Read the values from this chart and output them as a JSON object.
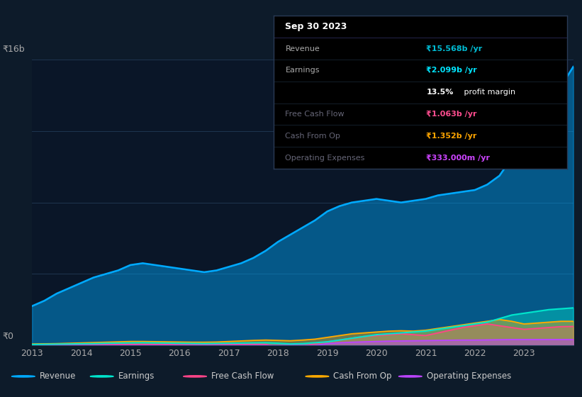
{
  "bg_color": "#0d1b2a",
  "plot_bg_color": "#0a1628",
  "ylabel_top": "₹16b",
  "ylabel_zero": "₹0",
  "ylim": [
    0,
    16
  ],
  "years": [
    2013,
    2013.25,
    2013.5,
    2013.75,
    2014,
    2014.25,
    2014.5,
    2014.75,
    2015,
    2015.25,
    2015.5,
    2015.75,
    2016,
    2016.25,
    2016.5,
    2016.75,
    2017,
    2017.25,
    2017.5,
    2017.75,
    2018,
    2018.25,
    2018.5,
    2018.75,
    2019,
    2019.25,
    2019.5,
    2019.75,
    2020,
    2020.25,
    2020.5,
    2020.75,
    2021,
    2021.25,
    2021.5,
    2021.75,
    2022,
    2022.25,
    2022.5,
    2022.75,
    2023,
    2023.25,
    2023.5,
    2023.75,
    2024
  ],
  "revenue": [
    2.2,
    2.5,
    2.9,
    3.2,
    3.5,
    3.8,
    4.0,
    4.2,
    4.5,
    4.6,
    4.5,
    4.4,
    4.3,
    4.2,
    4.1,
    4.2,
    4.4,
    4.6,
    4.9,
    5.3,
    5.8,
    6.2,
    6.6,
    7.0,
    7.5,
    7.8,
    8.0,
    8.1,
    8.2,
    8.1,
    8.0,
    8.1,
    8.2,
    8.4,
    8.5,
    8.6,
    8.7,
    9.0,
    9.5,
    10.5,
    11.5,
    12.5,
    13.5,
    14.5,
    15.6
  ],
  "earnings": [
    0.05,
    0.06,
    0.07,
    0.08,
    0.09,
    0.1,
    0.12,
    0.13,
    0.14,
    0.15,
    0.14,
    0.13,
    0.12,
    0.11,
    0.1,
    0.11,
    0.12,
    0.13,
    0.14,
    0.15,
    0.12,
    0.08,
    0.1,
    0.15,
    0.2,
    0.3,
    0.4,
    0.5,
    0.6,
    0.65,
    0.7,
    0.75,
    0.8,
    0.9,
    1.0,
    1.1,
    1.2,
    1.3,
    1.5,
    1.7,
    1.8,
    1.9,
    2.0,
    2.05,
    2.1
  ],
  "free_cash_flow": [
    0.02,
    0.02,
    0.03,
    0.03,
    0.04,
    0.04,
    0.05,
    0.05,
    0.06,
    0.06,
    0.05,
    0.05,
    0.04,
    0.04,
    0.04,
    0.05,
    0.06,
    0.07,
    0.08,
    0.06,
    -0.1,
    -0.2,
    -0.05,
    0.1,
    0.2,
    0.3,
    0.4,
    0.5,
    0.55,
    0.6,
    0.65,
    0.6,
    0.55,
    0.7,
    0.85,
    1.0,
    1.1,
    1.2,
    1.1,
    1.0,
    0.9,
    0.95,
    1.0,
    1.05,
    1.06
  ],
  "cash_from_op": [
    0.08,
    0.09,
    0.1,
    0.12,
    0.14,
    0.16,
    0.18,
    0.2,
    0.22,
    0.22,
    0.21,
    0.2,
    0.19,
    0.18,
    0.18,
    0.19,
    0.22,
    0.25,
    0.28,
    0.3,
    0.28,
    0.26,
    0.3,
    0.35,
    0.45,
    0.55,
    0.65,
    0.7,
    0.75,
    0.8,
    0.82,
    0.8,
    0.85,
    0.95,
    1.05,
    1.15,
    1.25,
    1.35,
    1.45,
    1.35,
    1.2,
    1.25,
    1.3,
    1.35,
    1.35
  ],
  "op_expenses": [
    0.0,
    0.0,
    0.0,
    0.0,
    0.0,
    0.0,
    0.0,
    0.0,
    0.0,
    0.0,
    0.0,
    0.0,
    0.0,
    0.0,
    0.0,
    0.0,
    0.0,
    0.0,
    0.0,
    0.0,
    0.0,
    0.0,
    0.0,
    0.0,
    0.1,
    0.15,
    0.18,
    0.2,
    0.22,
    0.24,
    0.25,
    0.26,
    0.27,
    0.28,
    0.29,
    0.3,
    0.3,
    0.31,
    0.32,
    0.33,
    0.33,
    0.33,
    0.33,
    0.33,
    0.33
  ],
  "revenue_color": "#00aaff",
  "earnings_color": "#00e5cc",
  "free_cash_flow_color": "#ff4488",
  "cash_from_op_color": "#ffaa00",
  "op_expenses_color": "#bb44ff",
  "legend_labels": [
    "Revenue",
    "Earnings",
    "Free Cash Flow",
    "Cash From Op",
    "Operating Expenses"
  ],
  "x_ticks": [
    2013,
    2014,
    2015,
    2016,
    2017,
    2018,
    2019,
    2020,
    2021,
    2022,
    2023
  ],
  "tooltip_title": "Sep 30 2023",
  "tooltip_rows": [
    {
      "label": "Revenue",
      "value": "₹15.568b /yr",
      "color": "#00bcd4",
      "dim_label": false
    },
    {
      "label": "Earnings",
      "value": "₹2.099b /yr",
      "color": "#00e5ff",
      "dim_label": false
    },
    {
      "label": "",
      "value": "profit margin",
      "color": "#ffffff",
      "dim_label": false,
      "prefix": "13.5%"
    },
    {
      "label": "Free Cash Flow",
      "value": "₹1.063b /yr",
      "color": "#ff4d8f",
      "dim_label": true
    },
    {
      "label": "Cash From Op",
      "value": "₹1.352b /yr",
      "color": "#ffa500",
      "dim_label": true
    },
    {
      "label": "Operating Expenses",
      "value": "₹333.000m /yr",
      "color": "#cc44ff",
      "dim_label": true
    }
  ]
}
